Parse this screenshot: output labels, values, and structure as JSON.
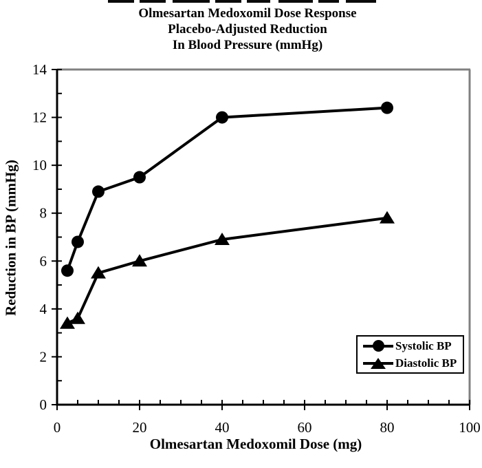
{
  "chart_data": {
    "type": "line",
    "title_lines": [
      "Olmesartan Medoxomil Dose Response",
      "Placebo-Adjusted Reduction",
      "In Blood Pressure (mmHg)"
    ],
    "xlabel": "Olmesartan Medoxomil Dose (mg)",
    "ylabel": "Reduction in BP (mmHg)",
    "xlim": [
      0,
      100
    ],
    "ylim": [
      0,
      14
    ],
    "x_major_ticks": [
      0,
      20,
      40,
      60,
      80,
      100
    ],
    "x_minor_step": 5,
    "y_major_ticks": [
      0,
      2,
      4,
      6,
      8,
      10,
      12,
      14
    ],
    "y_minor_step": 1,
    "grid": false,
    "x": [
      2.5,
      5,
      10,
      20,
      40,
      80
    ],
    "series": [
      {
        "name": "Systolic BP",
        "marker": "circle",
        "values": [
          5.6,
          6.8,
          8.9,
          9.5,
          12.0,
          12.4
        ]
      },
      {
        "name": "Diastolic BP",
        "marker": "triangle",
        "values": [
          3.4,
          3.6,
          5.5,
          6.0,
          6.9,
          7.8
        ]
      }
    ],
    "legend": {
      "position": "lower right",
      "entries": [
        "Systolic BP",
        "Diastolic BP"
      ]
    },
    "colors": {
      "line": "#000000",
      "plot_border": "#808080",
      "background": "#ffffff"
    }
  }
}
